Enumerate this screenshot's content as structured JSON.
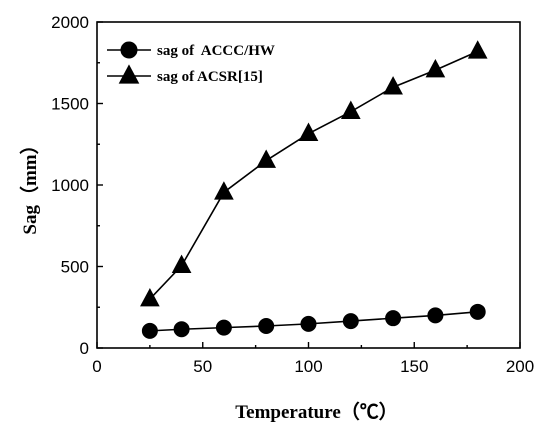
{
  "chart_data": {
    "type": "line",
    "xlabel": "Temperature（℃）",
    "ylabel": "Sag（mm）",
    "xlim": [
      0,
      200
    ],
    "ylim": [
      0,
      2000
    ],
    "xticks": [
      0,
      50,
      100,
      150,
      200
    ],
    "yticks": [
      0,
      500,
      1000,
      1500,
      2000
    ],
    "grid": false,
    "legend_position": "top-left",
    "series": [
      {
        "name": "sag of  ACCC/HW",
        "marker": "circle",
        "x": [
          25,
          40,
          60,
          80,
          100,
          120,
          140,
          160,
          180
        ],
        "y": [
          105,
          115,
          125,
          135,
          148,
          165,
          183,
          200,
          222
        ]
      },
      {
        "name": "sag of ACSR[15]",
        "marker": "triangle",
        "x": [
          25,
          40,
          60,
          80,
          100,
          120,
          140,
          160,
          180
        ],
        "y": [
          300,
          505,
          955,
          1150,
          1315,
          1450,
          1600,
          1705,
          1820
        ]
      }
    ]
  }
}
